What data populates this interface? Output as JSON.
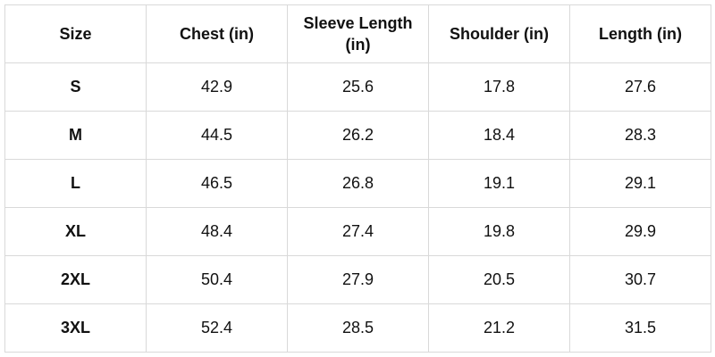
{
  "table": {
    "header": [
      "Size",
      "Chest (in)",
      "Sleeve Length (in)",
      "Shoulder (in)",
      "Length (in)"
    ],
    "rows": [
      [
        "S",
        "42.9",
        "25.6",
        "17.8",
        "27.6"
      ],
      [
        "M",
        "44.5",
        "26.2",
        "18.4",
        "28.3"
      ],
      [
        "L",
        "46.5",
        "26.8",
        "19.1",
        "29.1"
      ],
      [
        "XL",
        "48.4",
        "27.4",
        "19.8",
        "29.9"
      ],
      [
        "2XL",
        "50.4",
        "27.9",
        "20.5",
        "30.7"
      ],
      [
        "3XL",
        "52.4",
        "28.5",
        "21.2",
        "31.5"
      ]
    ]
  }
}
